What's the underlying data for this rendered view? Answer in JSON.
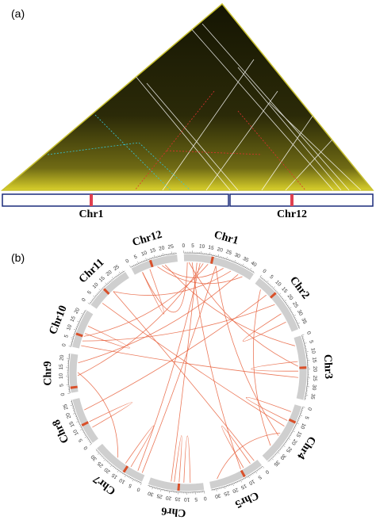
{
  "panel_a": {
    "label": "(a)",
    "chromosomes": [
      "Chr1",
      "Chr12"
    ]
  },
  "panel_b": {
    "label": "(b)",
    "chromosomes": [
      {
        "name": "Chr1",
        "ticks": [
          0,
          5,
          10,
          15,
          20,
          25,
          30,
          35,
          40
        ]
      },
      {
        "name": "Chr2",
        "ticks": [
          0,
          5,
          10,
          15,
          20,
          25,
          30,
          35
        ]
      },
      {
        "name": "Chr3",
        "ticks": [
          0,
          5,
          10,
          15,
          20,
          25,
          30,
          35
        ]
      },
      {
        "name": "Chr4",
        "ticks": [
          0,
          5,
          10,
          15,
          20,
          25,
          30,
          35
        ]
      },
      {
        "name": "Chr5",
        "ticks": [
          0,
          5,
          10,
          15,
          20,
          25,
          30
        ]
      },
      {
        "name": "Chr6",
        "ticks": [
          0,
          5,
          10,
          15,
          20,
          25,
          30
        ]
      },
      {
        "name": "Chr7",
        "ticks": [
          0,
          5,
          10,
          15,
          20,
          25,
          30
        ]
      },
      {
        "name": "Chr8",
        "ticks": [
          0,
          5,
          10,
          15,
          20,
          25
        ]
      },
      {
        "name": "Chr9",
        "ticks": [
          0,
          5,
          10,
          15,
          20
        ]
      },
      {
        "name": "Chr10",
        "ticks": [
          0,
          5,
          10,
          15,
          20
        ]
      },
      {
        "name": "Chr11",
        "ticks": [
          0,
          5,
          10,
          15,
          20,
          25
        ]
      },
      {
        "name": "Chr12",
        "ticks": [
          0,
          5,
          10,
          15,
          20,
          25
        ]
      }
    ]
  }
}
